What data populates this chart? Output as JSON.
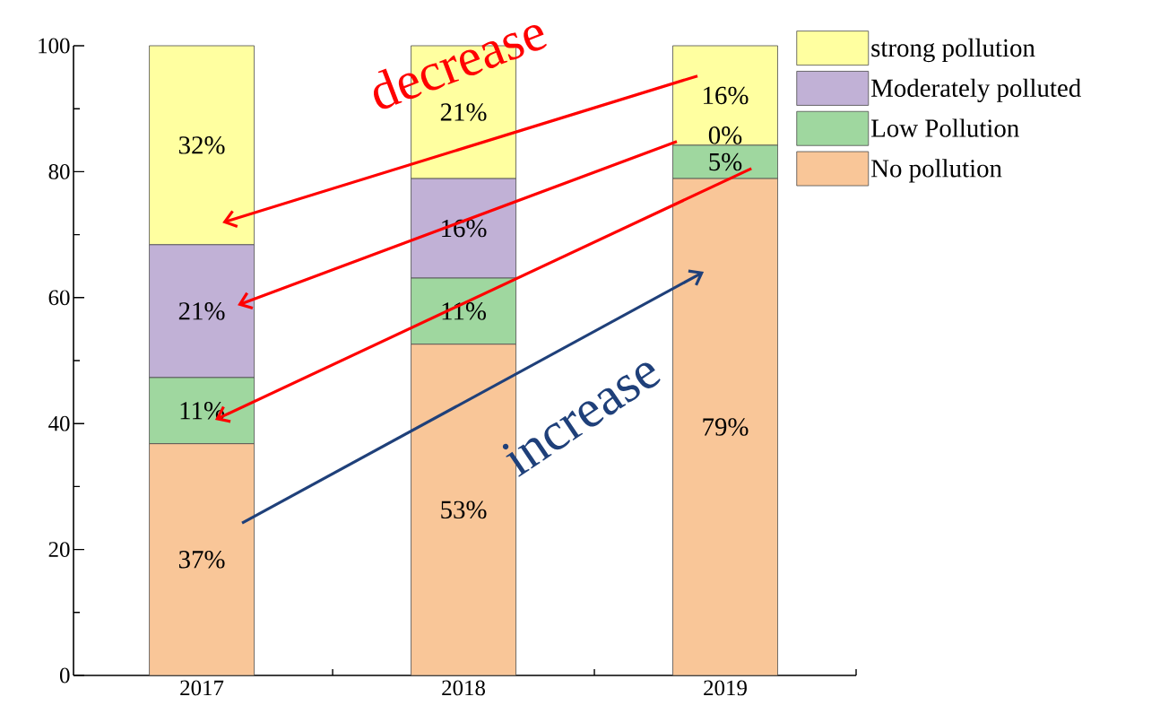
{
  "chart_data": {
    "type": "bar",
    "stacked": true,
    "categories": [
      "2017",
      "2018",
      "2019"
    ],
    "series": [
      {
        "name": "No pollution",
        "color": "#f9c698",
        "values": [
          36.8,
          52.6,
          78.9
        ],
        "value_labels": [
          "37%",
          "53%",
          "79%"
        ]
      },
      {
        "name": "Low Pollution",
        "color": "#9fd79f",
        "values": [
          10.5,
          10.5,
          5.3
        ],
        "value_labels": [
          "11%",
          "11%",
          "5%"
        ]
      },
      {
        "name": "Moderately polluted",
        "color": "#c1b1d6",
        "values": [
          21.1,
          15.8,
          0
        ],
        "value_labels": [
          "21%",
          "16%",
          "0%"
        ]
      },
      {
        "name": "strong pollution",
        "color": "#ffffa0",
        "values": [
          31.6,
          21.1,
          15.8
        ],
        "value_labels": [
          "32%",
          "21%",
          "16%"
        ]
      }
    ],
    "ylim": [
      0,
      100
    ],
    "yticks": [
      0,
      20,
      40,
      60,
      80,
      100
    ],
    "legend": "top right",
    "annotations": [
      "decrease",
      "increase"
    ]
  }
}
